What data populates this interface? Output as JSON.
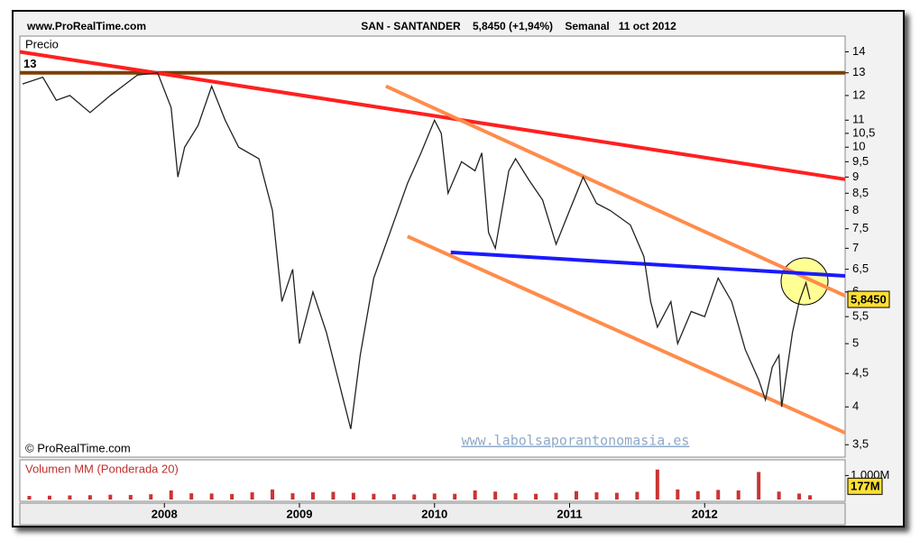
{
  "chart_data": [
    {
      "type": "line",
      "source": "www.ProRealTime.com",
      "title": "SAN - SANTANDER    5,8450 (+1,94%)    Semanal   11 oct 2012",
      "y_label": "Precio",
      "copyright": "© ProRealTime.com",
      "watermark": "www.labolsaporantonomasia.es",
      "log": true,
      "color": "#222222",
      "x": [
        2006.95,
        2007.1,
        2007.2,
        2007.3,
        2007.45,
        2007.6,
        2007.8,
        2007.95,
        2008.05,
        2008.1,
        2008.15,
        2008.25,
        2008.35,
        2008.45,
        2008.55,
        2008.7,
        2008.8,
        2008.87,
        2008.95,
        2009.0,
        2009.1,
        2009.2,
        2009.3,
        2009.38,
        2009.45,
        2009.55,
        2009.65,
        2009.8,
        2009.9,
        2010.0,
        2010.05,
        2010.1,
        2010.2,
        2010.3,
        2010.35,
        2010.4,
        2010.45,
        2010.55,
        2010.6,
        2010.7,
        2010.8,
        2010.9,
        2011.0,
        2011.1,
        2011.2,
        2011.3,
        2011.45,
        2011.55,
        2011.6,
        2011.65,
        2011.75,
        2011.8,
        2011.9,
        2012.0,
        2012.1,
        2012.2,
        2012.3,
        2012.4,
        2012.45,
        2012.5,
        2012.55,
        2012.57,
        2012.65,
        2012.7,
        2012.75,
        2012.78
      ],
      "values": [
        12.5,
        12.8,
        11.8,
        12.0,
        11.3,
        12.0,
        12.9,
        13.0,
        11.5,
        9.0,
        10.0,
        10.8,
        12.4,
        11.0,
        10.0,
        9.6,
        8.0,
        5.8,
        6.5,
        5.0,
        6.0,
        5.2,
        4.3,
        3.7,
        4.8,
        6.3,
        7.2,
        8.8,
        9.8,
        11.0,
        10.5,
        8.5,
        9.5,
        9.2,
        9.8,
        7.4,
        7.0,
        9.2,
        9.6,
        8.9,
        8.3,
        7.1,
        8.0,
        9.0,
        8.2,
        8.0,
        7.6,
        6.8,
        5.8,
        5.3,
        5.8,
        5.0,
        5.6,
        5.5,
        6.3,
        5.8,
        4.9,
        4.4,
        4.1,
        4.6,
        4.8,
        4.0,
        5.2,
        5.8,
        6.2,
        5.845
      ],
      "last_label": {
        "value": 5.845,
        "label": "5,8450"
      },
      "lines": [
        {
          "color": "#7b3f00",
          "x": [
            2006.93,
            2013.04
          ],
          "values": [
            13,
            13
          ],
          "label": "13"
        },
        {
          "color": "#ff2020",
          "x": [
            2006.93,
            2013.04
          ],
          "values": [
            14.0,
            8.93
          ]
        },
        {
          "color": "#ff8c4a",
          "x": [
            2009.64,
            2013.04
          ],
          "values": [
            12.4,
            5.92
          ]
        },
        {
          "color": "#ff8c4a",
          "x": [
            2009.8,
            2013.04
          ],
          "values": [
            7.3,
            3.65
          ]
        },
        {
          "color": "#1a1aff",
          "x": [
            2010.12,
            2013.04
          ],
          "values": [
            6.9,
            6.35
          ]
        }
      ],
      "xlim": [
        2006.93,
        2013.04
      ],
      "xticks": [
        2008,
        2009,
        2010,
        2011,
        2012
      ],
      "ylim": [
        3.35,
        14.8
      ],
      "yticks": [
        {
          "value": 3.5,
          "label": "3,5"
        },
        4,
        {
          "value": 4.5,
          "label": "4,5"
        },
        5,
        {
          "value": 5.5,
          "label": "5,5"
        },
        6,
        {
          "value": 6.5,
          "label": "6,5"
        },
        7,
        {
          "value": 7.5,
          "label": "7,5"
        },
        8,
        {
          "value": 8.5,
          "label": "8,5"
        },
        9,
        {
          "value": 9.5,
          "label": "9,5"
        },
        10,
        {
          "value": 10.5,
          "label": "10,5"
        },
        11,
        12,
        13,
        14
      ]
    },
    {
      "type": "bar",
      "title": "Volumen MM (Ponderada 20)",
      "color": "#cc3333",
      "x": [
        2007.0,
        2007.15,
        2007.3,
        2007.45,
        2007.6,
        2007.75,
        2007.9,
        2008.05,
        2008.2,
        2008.35,
        2008.5,
        2008.65,
        2008.8,
        2008.95,
        2009.1,
        2009.25,
        2009.4,
        2009.55,
        2009.7,
        2009.85,
        2010.0,
        2010.15,
        2010.3,
        2010.45,
        2010.6,
        2010.75,
        2010.9,
        2011.05,
        2011.2,
        2011.35,
        2011.5,
        2011.65,
        2011.8,
        2011.95,
        2012.1,
        2012.25,
        2012.4,
        2012.55,
        2012.7,
        2012.78
      ],
      "values": [
        150,
        160,
        170,
        180,
        200,
        190,
        220,
        380,
        260,
        250,
        230,
        300,
        420,
        260,
        300,
        320,
        280,
        240,
        220,
        210,
        250,
        240,
        380,
        330,
        260,
        240,
        280,
        350,
        300,
        280,
        320,
        1250,
        420,
        350,
        400,
        380,
        1150,
        330,
        250,
        177
      ],
      "last_label": {
        "value": 177,
        "label": "177M"
      },
      "xlim": [
        2006.93,
        2013.04
      ],
      "ylim": [
        0,
        1580
      ],
      "yticks": [
        {
          "value": 1000,
          "label": "1.000M"
        }
      ]
    }
  ]
}
